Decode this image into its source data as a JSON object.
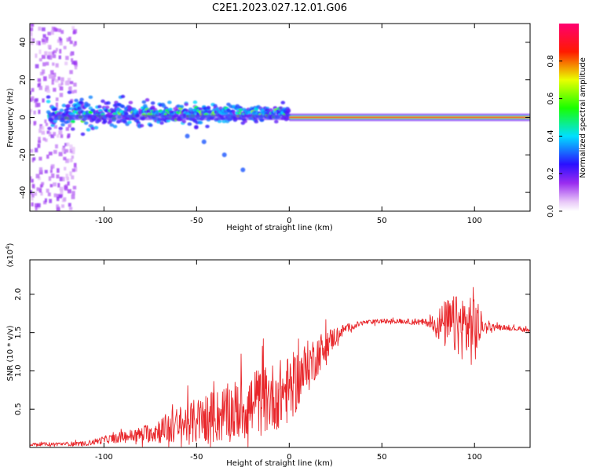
{
  "title": "C2E1.2023.027.12.01.G06",
  "chart_data": [
    {
      "type": "heatmap",
      "xlabel": "Height of straight line (km)",
      "ylabel": "Frequency (Hz)",
      "xlim": [
        -140,
        130
      ],
      "ylim": [
        -50,
        50
      ],
      "xticks": [
        -100,
        -50,
        0,
        50,
        100
      ],
      "yticks": [
        -40,
        -20,
        0,
        20,
        40
      ],
      "colorbar": {
        "label": "Normalized spectral amplitude",
        "range": [
          0,
          1
        ],
        "ticks": [
          0.0,
          0.2,
          0.4,
          0.6,
          0.8
        ],
        "colormap": "rainbow (white/violet → blue → cyan → green → yellow → red → magenta)"
      },
      "features": [
        {
          "desc": "broadband noise",
          "x_range": [
            -140,
            -115
          ],
          "f_range": [
            -50,
            50
          ],
          "amplitude": 0.1
        },
        {
          "desc": "main ridge",
          "x_range": [
            -130,
            0
          ],
          "f_center": 2,
          "spread_hz": 8,
          "amplitude": 0.4
        },
        {
          "desc": "narrow carrier line",
          "x_range": [
            0,
            130
          ],
          "f_center": 0,
          "amplitude": 0.9
        },
        {
          "desc": "weak branch",
          "points": [
            [
              -55,
              -10
            ],
            [
              -46,
              -13
            ],
            [
              -35,
              -20
            ],
            [
              -25,
              -28
            ]
          ]
        }
      ]
    },
    {
      "type": "line",
      "xlabel": "Height of straight line (km)",
      "ylabel": "SNR (10 * v/v)",
      "y_scale_label": "(x10",
      "y_scale_exp": "4",
      "xlim": [
        -140,
        130
      ],
      "ylim": [
        0,
        2.45
      ],
      "xticks": [
        -100,
        -50,
        0,
        50,
        100
      ],
      "yticks": [
        0.5,
        1.0,
        1.5,
        2.0
      ],
      "ytick_labels": [
        "0.5",
        "1.0",
        "1.5",
        "2.0"
      ],
      "color": "#e8262a",
      "trend": {
        "x": [
          -140,
          -110,
          -100,
          -80,
          -60,
          -40,
          -20,
          0,
          10,
          20,
          30,
          40,
          50,
          60,
          75,
          85,
          95,
          100,
          105,
          115,
          130
        ],
        "y": [
          0.04,
          0.05,
          0.1,
          0.17,
          0.28,
          0.4,
          0.55,
          0.75,
          1.05,
          1.35,
          1.55,
          1.63,
          1.65,
          1.65,
          1.63,
          1.6,
          1.58,
          1.57,
          1.58,
          1.57,
          1.53
        ],
        "noise_amplitude": [
          0.02,
          0.03,
          0.05,
          0.1,
          0.25,
          0.35,
          0.45,
          0.45,
          0.35,
          0.2,
          0.06,
          0.03,
          0.03,
          0.03,
          0.05,
          0.35,
          0.45,
          0.55,
          0.06,
          0.03,
          0.03
        ]
      }
    }
  ]
}
